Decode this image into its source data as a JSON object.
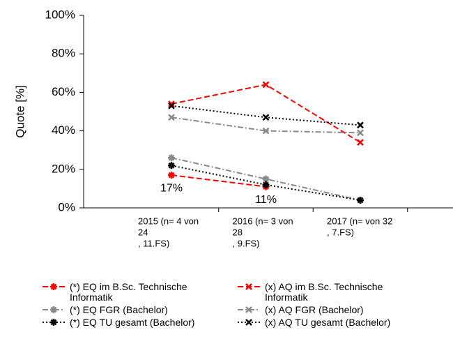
{
  "chart_data": {
    "type": "line",
    "y_label": "Quote [%]",
    "categories": [
      [
        "2015 (n= 4 von",
        "24",
        ", 11.FS)"
      ],
      [
        "2016 (n= 3 von",
        "28",
        ", 9.FS)"
      ],
      [
        "2017 (n=  von 32",
        ", 7.FS)"
      ]
    ],
    "ylim": [
      0,
      100
    ],
    "yticks": [
      {
        "value": 0,
        "label": "0%"
      },
      {
        "value": 20,
        "label": "20%"
      },
      {
        "value": 40,
        "label": "40%"
      },
      {
        "value": 60,
        "label": "60%"
      },
      {
        "value": 80,
        "label": "80%"
      },
      {
        "value": 100,
        "label": "100%"
      }
    ],
    "series": [
      {
        "name": "(*) EQ im B.Sc. Technische Informatik",
        "color": "#ff0000",
        "dash": "8,4",
        "marker": "+",
        "values": [
          17,
          11,
          null
        ],
        "value_labels": [
          "17%",
          "11%",
          null
        ]
      },
      {
        "name": "(x) AQ im B.Sc. Technische Informatik",
        "color": "#ff0000",
        "dash": "8,4",
        "marker": "x",
        "values": [
          54,
          64,
          34
        ]
      },
      {
        "name": "(*) EQ FGR (Bachelor)",
        "color": "#888888",
        "dash": "8,3,2,3",
        "marker": "+",
        "values": [
          26,
          15,
          4
        ]
      },
      {
        "name": "(x) AQ FGR (Bachelor)",
        "color": "#888888",
        "dash": "8,3,2,3",
        "marker": "x",
        "values": [
          47,
          40,
          39
        ]
      },
      {
        "name": "(*) EQ TU gesamt (Bachelor)",
        "color": "#000000",
        "dash": "2,3",
        "marker": "+",
        "values": [
          22,
          12,
          4
        ]
      },
      {
        "name": "(x) AQ TU gesamt (Bachelor)",
        "color": "#000000",
        "dash": "2,3",
        "marker": "x",
        "values": [
          53,
          47,
          43
        ]
      }
    ]
  }
}
